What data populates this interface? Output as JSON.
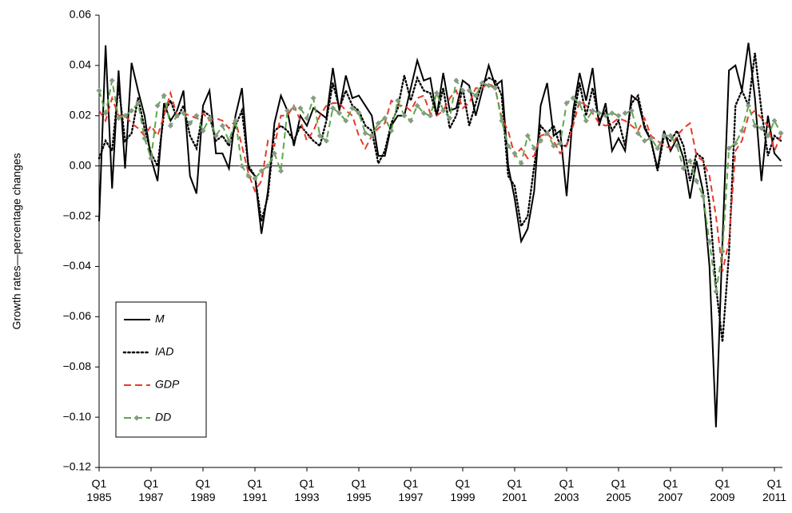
{
  "chart_data": {
    "type": "line",
    "y_label": "Growth rates—percentage changes",
    "ylim": [
      -0.12,
      0.06
    ],
    "yticks": [
      0.06,
      0.04,
      0.02,
      {
        "value": 0,
        "label": "0.00"
      },
      {
        "value": -0.02,
        "label": "−0.02"
      },
      {
        "value": -0.04,
        "label": "−0.04"
      },
      {
        "value": -0.06,
        "label": "−0.06"
      },
      {
        "value": -0.08,
        "label": "−0.08"
      },
      {
        "value": -0.1,
        "label": "−0.10"
      },
      {
        "value": -0.12,
        "label": "−0.12"
      }
    ],
    "zero_line": true,
    "legend": "lower left",
    "categories": [
      "Q1 1985",
      null,
      null,
      null,
      null,
      null,
      null,
      null,
      "Q1 1987",
      null,
      null,
      null,
      null,
      null,
      null,
      null,
      "Q1 1989",
      null,
      null,
      null,
      null,
      null,
      null,
      null,
      "Q1 1991",
      null,
      null,
      null,
      null,
      null,
      null,
      null,
      "Q1 1993",
      null,
      null,
      null,
      null,
      null,
      null,
      null,
      "Q1 1995",
      null,
      null,
      null,
      null,
      null,
      null,
      null,
      "Q1 1997",
      null,
      null,
      null,
      null,
      null,
      null,
      null,
      "Q1 1999",
      null,
      null,
      null,
      null,
      null,
      null,
      null,
      "Q1 2001",
      null,
      null,
      null,
      null,
      null,
      null,
      null,
      "Q1 2003",
      null,
      null,
      null,
      null,
      null,
      null,
      null,
      "Q1 2005",
      null,
      null,
      null,
      null,
      null,
      null,
      null,
      "Q1 2007",
      null,
      null,
      null,
      null,
      null,
      null,
      null,
      "Q1 2009",
      null,
      null,
      null,
      null,
      null,
      null,
      null,
      "Q1 2011",
      null
    ],
    "series": [
      {
        "name": "M",
        "color": "#000000",
        "dash": "solid",
        "values": [
          -0.022,
          0.048,
          -0.009,
          0.038,
          -0.001,
          0.041,
          0.03,
          0.02,
          0.003,
          -0.006,
          0.025,
          0.018,
          0.022,
          0.03,
          -0.004,
          -0.011,
          0.024,
          0.03,
          0.005,
          0.005,
          -0.001,
          0.02,
          0.031,
          -0.001,
          -0.004,
          -0.027,
          -0.01,
          0.017,
          0.028,
          0.022,
          0.008,
          0.02,
          0.016,
          0.023,
          0.021,
          0.019,
          0.039,
          0.022,
          0.036,
          0.027,
          0.028,
          0.024,
          0.02,
          0.004,
          0.004,
          0.016,
          0.02,
          0.02,
          0.031,
          0.042,
          0.034,
          0.035,
          0.02,
          0.037,
          0.022,
          0.023,
          0.034,
          0.032,
          0.02,
          0.03,
          0.04,
          0.032,
          0.034,
          0.0,
          -0.013,
          -0.03,
          -0.025,
          -0.01,
          0.024,
          0.033,
          0.012,
          0.014,
          -0.012,
          0.022,
          0.037,
          0.026,
          0.039,
          0.016,
          0.025,
          0.006,
          0.011,
          0.006,
          0.028,
          0.026,
          0.015,
          0.01,
          -0.001,
          0.014,
          0.006,
          0.011,
          0.003,
          -0.013,
          0.002,
          -0.01,
          -0.04,
          -0.104,
          -0.03,
          0.038,
          0.04,
          0.03,
          0.049,
          0.027,
          -0.006,
          0.02,
          0.005,
          0.002
        ]
      },
      {
        "name": "IAD",
        "color": "#000000",
        "dash": "dotted",
        "values": [
          0.003,
          0.01,
          0.006,
          0.032,
          0.01,
          0.013,
          0.027,
          0.015,
          0.005,
          0.0,
          0.021,
          0.026,
          0.019,
          0.024,
          0.012,
          0.007,
          0.022,
          0.02,
          0.01,
          0.012,
          0.008,
          0.016,
          0.022,
          0.0,
          -0.004,
          -0.022,
          -0.012,
          0.014,
          0.016,
          0.014,
          0.01,
          0.016,
          0.013,
          0.01,
          0.008,
          0.018,
          0.033,
          0.023,
          0.03,
          0.024,
          0.022,
          0.016,
          0.014,
          0.001,
          0.006,
          0.017,
          0.023,
          0.036,
          0.026,
          0.035,
          0.03,
          0.029,
          0.02,
          0.031,
          0.015,
          0.02,
          0.031,
          0.016,
          0.025,
          0.033,
          0.035,
          0.034,
          0.028,
          -0.004,
          -0.008,
          -0.024,
          -0.02,
          0.0,
          0.016,
          0.013,
          0.016,
          0.008,
          0.008,
          0.018,
          0.033,
          0.02,
          0.031,
          0.018,
          0.022,
          0.014,
          0.018,
          0.008,
          0.025,
          0.028,
          0.016,
          0.01,
          -0.002,
          0.012,
          0.01,
          0.014,
          0.008,
          -0.006,
          0.005,
          0.003,
          -0.015,
          -0.048,
          -0.07,
          -0.035,
          0.024,
          0.03,
          0.024,
          0.045,
          0.022,
          0.004,
          0.012,
          0.01
        ]
      },
      {
        "name": "GDP",
        "color": "#e8392b",
        "dash": "dashed",
        "values": [
          0.022,
          0.018,
          0.027,
          0.02,
          0.02,
          0.017,
          0.015,
          0.012,
          0.016,
          0.012,
          0.02,
          0.029,
          0.02,
          0.021,
          0.02,
          0.019,
          0.021,
          0.018,
          0.019,
          0.018,
          0.015,
          0.018,
          0.008,
          -0.003,
          -0.01,
          -0.006,
          0.01,
          0.008,
          0.02,
          0.02,
          0.024,
          0.018,
          0.01,
          0.014,
          0.02,
          0.024,
          0.025,
          0.025,
          0.022,
          0.02,
          0.012,
          0.007,
          0.012,
          0.015,
          0.017,
          0.026,
          0.024,
          0.024,
          0.022,
          0.027,
          0.028,
          0.021,
          0.02,
          0.022,
          0.027,
          0.03,
          0.023,
          0.025,
          0.031,
          0.031,
          0.033,
          0.031,
          0.019,
          0.014,
          0.004,
          0.007,
          0.003,
          0.004,
          0.012,
          0.013,
          0.01,
          0.005,
          0.008,
          0.016,
          0.026,
          0.024,
          0.021,
          0.017,
          0.016,
          0.017,
          0.019,
          0.018,
          0.016,
          0.014,
          0.019,
          0.012,
          0.01,
          0.008,
          0.007,
          0.012,
          0.015,
          0.017,
          0.004,
          0.002,
          -0.004,
          -0.02,
          -0.042,
          -0.03,
          0.006,
          0.01,
          0.02,
          0.022,
          0.019,
          0.016,
          0.006,
          0.012
        ]
      },
      {
        "name": "DD",
        "color": "#5fa64a",
        "dash": "dashed",
        "marker": "diamond",
        "marker_color": "#879c84",
        "values": [
          0.03,
          0.021,
          0.034,
          0.019,
          0.02,
          0.022,
          0.025,
          0.011,
          0.003,
          0.024,
          0.028,
          0.016,
          0.02,
          0.021,
          0.017,
          0.02,
          0.014,
          0.019,
          0.012,
          0.016,
          0.01,
          0.018,
          0.0,
          -0.004,
          -0.005,
          -0.002,
          0.0,
          0.005,
          -0.002,
          0.022,
          0.023,
          0.023,
          0.019,
          0.027,
          0.012,
          0.01,
          0.023,
          0.021,
          0.018,
          0.023,
          0.021,
          0.013,
          0.012,
          0.017,
          0.019,
          0.014,
          0.026,
          0.02,
          0.018,
          0.024,
          0.021,
          0.02,
          0.029,
          0.022,
          0.019,
          0.034,
          0.03,
          0.03,
          0.028,
          0.033,
          0.032,
          0.031,
          0.018,
          0.008,
          0.005,
          0.001,
          0.012,
          0.007,
          0.01,
          0.013,
          0.008,
          0.009,
          0.025,
          0.027,
          0.025,
          0.018,
          0.022,
          0.021,
          0.02,
          0.021,
          0.02,
          0.021,
          0.022,
          0.013,
          0.01,
          0.011,
          0.007,
          0.012,
          0.012,
          0.008,
          -0.001,
          0.002,
          -0.006,
          -0.012,
          -0.03,
          -0.05,
          -0.034,
          0.007,
          0.009,
          0.014,
          0.024,
          0.016,
          0.015,
          0.012,
          0.018,
          0.013
        ]
      }
    ]
  }
}
